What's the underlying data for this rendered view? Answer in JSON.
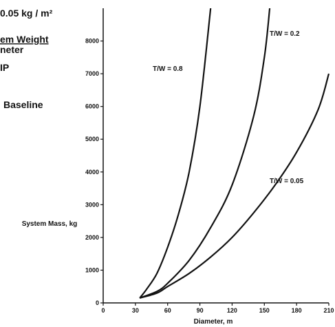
{
  "annotations": {
    "loading": "0.05 kg / m²",
    "weight_line": "em Weight",
    "diameter_line": "neter",
    "fip_line": "IP",
    "baseline": "Baseline"
  },
  "chart_data": {
    "type": "line",
    "xlabel": "Diameter, m",
    "ylabel": "System Mass, kg",
    "xlim": [
      0,
      210
    ],
    "ylim": [
      0,
      9000
    ],
    "x_ticks": [
      0,
      30,
      60,
      90,
      120,
      150,
      180,
      210
    ],
    "y_ticks": [
      0,
      1000,
      2000,
      3000,
      4000,
      5000,
      6000,
      7000,
      8000
    ],
    "grid": false,
    "series": [
      {
        "name": "T/W = 0.8",
        "x": [
          34,
          40,
          50,
          60,
          70,
          80,
          90,
          100
        ],
        "y": [
          150,
          400,
          900,
          1700,
          2700,
          4000,
          6000,
          9000
        ]
      },
      {
        "name": "T/W = 0.2",
        "x": [
          34,
          50,
          60,
          80,
          100,
          120,
          140,
          150,
          155
        ],
        "y": [
          150,
          350,
          600,
          1300,
          2300,
          3600,
          5700,
          7500,
          9000
        ]
      },
      {
        "name": "T/W = 0.05",
        "x": [
          34,
          50,
          60,
          80,
          100,
          120,
          140,
          160,
          180,
          200,
          210
        ],
        "y": [
          150,
          300,
          500,
          900,
          1400,
          2000,
          2750,
          3600,
          4600,
          5900,
          7000
        ]
      }
    ]
  }
}
